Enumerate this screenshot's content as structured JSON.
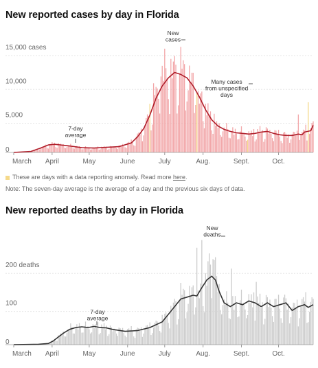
{
  "chart_data": [
    {
      "type": "bar",
      "title": "New reported cases by day in Florida",
      "x_months": [
        "March",
        "April",
        "May",
        "June",
        "July",
        "Aug.",
        "Sept.",
        "Oct."
      ],
      "y_tick_labels": [
        "0",
        "5,000",
        "10,000",
        "15,000 cases"
      ],
      "ylim": [
        0,
        16000
      ],
      "bar_color": "#f2a6a8",
      "average_line_color": "#b01e2a",
      "anomaly_color": "#f5d98a",
      "grid": true,
      "annotations": [
        {
          "lines": [
            "New",
            "cases"
          ]
        },
        {
          "lines": [
            "7-day",
            "average"
          ]
        },
        {
          "lines": [
            "Many cases",
            "from unspecified",
            "days"
          ]
        }
      ],
      "average_points": [
        [
          0,
          0
        ],
        [
          14,
          150
        ],
        [
          21,
          600
        ],
        [
          28,
          1100
        ],
        [
          33,
          1200
        ],
        [
          40,
          1050
        ],
        [
          45,
          950
        ],
        [
          55,
          700
        ],
        [
          65,
          650
        ],
        [
          75,
          750
        ],
        [
          85,
          850
        ],
        [
          95,
          1400
        ],
        [
          100,
          2300
        ],
        [
          105,
          3500
        ],
        [
          110,
          5500
        ],
        [
          115,
          8000
        ],
        [
          120,
          9800
        ],
        [
          125,
          11000
        ],
        [
          130,
          11800
        ],
        [
          135,
          11500
        ],
        [
          140,
          11000
        ],
        [
          145,
          9800
        ],
        [
          150,
          8200
        ],
        [
          155,
          6300
        ],
        [
          160,
          4800
        ],
        [
          165,
          3900
        ],
        [
          170,
          3400
        ],
        [
          175,
          3100
        ],
        [
          180,
          2900
        ],
        [
          185,
          2800
        ],
        [
          190,
          2700
        ],
        [
          195,
          2800
        ],
        [
          200,
          3000
        ],
        [
          205,
          3100
        ],
        [
          210,
          2800
        ],
        [
          215,
          2600
        ],
        [
          220,
          2500
        ],
        [
          225,
          2500
        ],
        [
          230,
          2700
        ],
        [
          233,
          2600
        ],
        [
          235,
          3000
        ],
        [
          240,
          3200
        ],
        [
          242,
          4000
        ]
      ],
      "anomaly_days": [
        110,
        148,
        189,
        238
      ]
    },
    {
      "type": "bar",
      "title": "New reported deaths by day in Florida",
      "x_months": [
        "March",
        "April",
        "May",
        "June",
        "July",
        "Aug.",
        "Sept.",
        "Oct."
      ],
      "y_tick_labels": [
        "0",
        "100",
        "200 deaths"
      ],
      "ylim": [
        0,
        260
      ],
      "bar_color": "#cccccc",
      "average_line_color": "#333333",
      "grid": true,
      "annotations": [
        {
          "lines": [
            "New",
            "deaths"
          ]
        },
        {
          "lines": [
            "7-day",
            "average"
          ]
        }
      ],
      "average_points": [
        [
          0,
          0
        ],
        [
          20,
          1
        ],
        [
          28,
          3
        ],
        [
          32,
          10
        ],
        [
          36,
          20
        ],
        [
          40,
          30
        ],
        [
          45,
          40
        ],
        [
          50,
          45
        ],
        [
          55,
          47
        ],
        [
          60,
          45
        ],
        [
          65,
          48
        ],
        [
          70,
          45
        ],
        [
          75,
          44
        ],
        [
          80,
          40
        ],
        [
          90,
          35
        ],
        [
          100,
          37
        ],
        [
          110,
          45
        ],
        [
          120,
          60
        ],
        [
          125,
          80
        ],
        [
          130,
          100
        ],
        [
          135,
          120
        ],
        [
          140,
          125
        ],
        [
          145,
          130
        ],
        [
          148,
          128
        ],
        [
          152,
          150
        ],
        [
          156,
          170
        ],
        [
          160,
          180
        ],
        [
          163,
          170
        ],
        [
          166,
          140
        ],
        [
          170,
          110
        ],
        [
          175,
          100
        ],
        [
          180,
          110
        ],
        [
          185,
          105
        ],
        [
          190,
          115
        ],
        [
          195,
          110
        ],
        [
          200,
          100
        ],
        [
          205,
          110
        ],
        [
          210,
          100
        ],
        [
          215,
          105
        ],
        [
          220,
          110
        ],
        [
          225,
          90
        ],
        [
          230,
          100
        ],
        [
          235,
          105
        ],
        [
          238,
          98
        ],
        [
          242,
          105
        ]
      ]
    }
  ],
  "notes": {
    "anomaly_prefix": "These are days with a data reporting anomaly. Read more ",
    "anomaly_link": "here",
    "anomaly_suffix": ".",
    "seven_day": "Note: The seven-day average is the average of a day and the previous six days of data."
  }
}
